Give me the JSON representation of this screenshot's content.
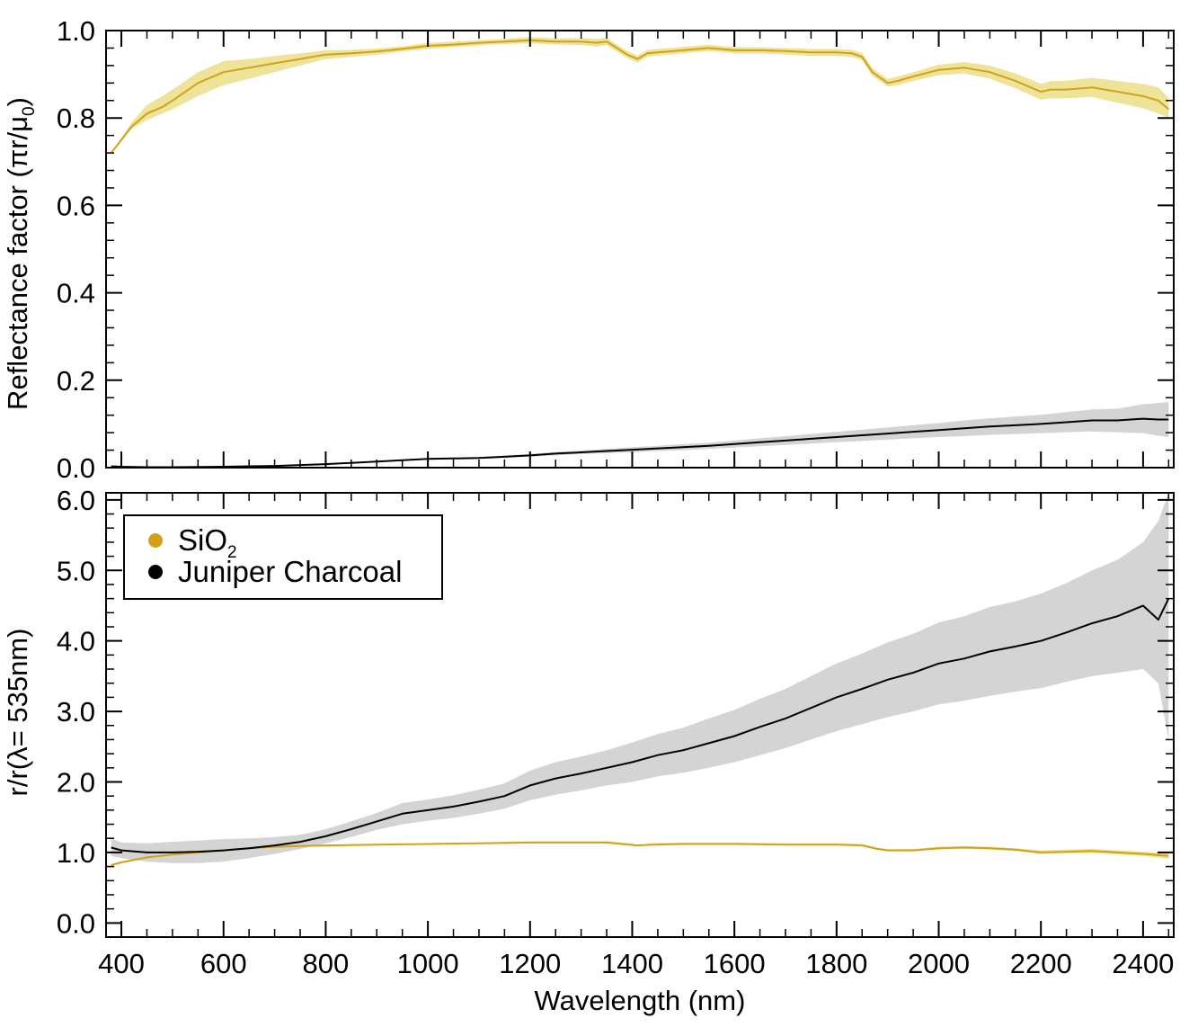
{
  "colors": {
    "sio2_line": "#D4A017",
    "sio2_band": "#EDE49A",
    "charcoal_line": "#000000",
    "charcoal_band": "#D4D4D4"
  },
  "chart_data": [
    {
      "type": "line",
      "panel": "top",
      "title": "",
      "xlabel": "",
      "ylabel": "Reflectance factor (πr/μ₀)",
      "ylabel_main": "Reflectance factor (πr/μ",
      "ylabel_sub": "0",
      "ylabel_tail": ")",
      "xlim": [
        370,
        2460
      ],
      "ylim": [
        0.0,
        1.0
      ],
      "yticks": [
        0.0,
        0.2,
        0.4,
        0.6,
        0.8,
        1.0
      ],
      "ytick_labels": [
        "0.0",
        "0.2",
        "0.4",
        "0.6",
        "0.8",
        "1.0"
      ],
      "grid": false,
      "series": [
        {
          "name": "SiO2",
          "color": "sio2",
          "x": [
            380,
            400,
            420,
            450,
            480,
            500,
            550,
            600,
            650,
            700,
            750,
            800,
            850,
            900,
            950,
            1000,
            1050,
            1100,
            1150,
            1200,
            1250,
            1300,
            1330,
            1350,
            1370,
            1390,
            1410,
            1430,
            1450,
            1500,
            1550,
            1600,
            1650,
            1700,
            1750,
            1800,
            1830,
            1850,
            1870,
            1900,
            1920,
            1950,
            2000,
            2050,
            2100,
            2150,
            2180,
            2200,
            2220,
            2250,
            2300,
            2350,
            2400,
            2430,
            2450
          ],
          "y": [
            0.72,
            0.75,
            0.78,
            0.81,
            0.825,
            0.84,
            0.88,
            0.905,
            0.915,
            0.925,
            0.935,
            0.945,
            0.948,
            0.952,
            0.958,
            0.965,
            0.968,
            0.972,
            0.975,
            0.978,
            0.975,
            0.975,
            0.972,
            0.975,
            0.96,
            0.945,
            0.935,
            0.948,
            0.95,
            0.955,
            0.96,
            0.955,
            0.955,
            0.953,
            0.95,
            0.95,
            0.948,
            0.94,
            0.905,
            0.88,
            0.885,
            0.895,
            0.91,
            0.915,
            0.905,
            0.885,
            0.87,
            0.86,
            0.865,
            0.865,
            0.87,
            0.86,
            0.85,
            0.84,
            0.82
          ],
          "lower": [
            0.72,
            0.75,
            0.775,
            0.795,
            0.81,
            0.82,
            0.85,
            0.875,
            0.89,
            0.905,
            0.92,
            0.935,
            0.94,
            0.945,
            0.952,
            0.958,
            0.962,
            0.966,
            0.969,
            0.971,
            0.968,
            0.967,
            0.963,
            0.967,
            0.952,
            0.937,
            0.927,
            0.94,
            0.943,
            0.948,
            0.953,
            0.948,
            0.948,
            0.945,
            0.942,
            0.942,
            0.94,
            0.932,
            0.896,
            0.872,
            0.875,
            0.885,
            0.898,
            0.902,
            0.89,
            0.868,
            0.852,
            0.842,
            0.845,
            0.845,
            0.848,
            0.835,
            0.822,
            0.81,
            0.8
          ],
          "upper": [
            0.72,
            0.755,
            0.79,
            0.83,
            0.85,
            0.865,
            0.905,
            0.93,
            0.935,
            0.942,
            0.948,
            0.955,
            0.956,
            0.959,
            0.964,
            0.972,
            0.975,
            0.978,
            0.981,
            0.985,
            0.982,
            0.983,
            0.981,
            0.984,
            0.968,
            0.953,
            0.943,
            0.956,
            0.958,
            0.963,
            0.968,
            0.962,
            0.962,
            0.96,
            0.958,
            0.958,
            0.956,
            0.948,
            0.914,
            0.889,
            0.895,
            0.905,
            0.922,
            0.928,
            0.92,
            0.902,
            0.888,
            0.878,
            0.885,
            0.885,
            0.892,
            0.885,
            0.878,
            0.87,
            0.845
          ]
        },
        {
          "name": "Juniper Charcoal",
          "color": "charcoal",
          "x": [
            380,
            400,
            450,
            500,
            550,
            600,
            650,
            700,
            750,
            800,
            850,
            900,
            950,
            1000,
            1050,
            1100,
            1150,
            1200,
            1250,
            1300,
            1350,
            1400,
            1450,
            1500,
            1550,
            1600,
            1650,
            1700,
            1750,
            1800,
            1850,
            1900,
            1950,
            2000,
            2050,
            2100,
            2150,
            2200,
            2250,
            2300,
            2350,
            2400,
            2430,
            2450
          ],
          "y": [
            0.003,
            0.002,
            0.001,
            0.001,
            0.0015,
            0.002,
            0.003,
            0.004,
            0.006,
            0.008,
            0.011,
            0.014,
            0.017,
            0.02,
            0.021,
            0.022,
            0.025,
            0.028,
            0.032,
            0.035,
            0.038,
            0.041,
            0.044,
            0.047,
            0.05,
            0.054,
            0.058,
            0.062,
            0.066,
            0.07,
            0.074,
            0.078,
            0.082,
            0.086,
            0.09,
            0.094,
            0.097,
            0.1,
            0.104,
            0.108,
            0.108,
            0.112,
            0.11,
            0.11
          ],
          "lower": [
            0.003,
            0.002,
            0.001,
            0.001,
            0.0015,
            0.002,
            0.003,
            0.004,
            0.006,
            0.008,
            0.011,
            0.013,
            0.016,
            0.018,
            0.019,
            0.02,
            0.022,
            0.025,
            0.028,
            0.031,
            0.033,
            0.035,
            0.038,
            0.04,
            0.043,
            0.046,
            0.049,
            0.052,
            0.055,
            0.058,
            0.061,
            0.064,
            0.067,
            0.07,
            0.072,
            0.075,
            0.077,
            0.079,
            0.081,
            0.083,
            0.081,
            0.079,
            0.073,
            0.07
          ],
          "upper": [
            0.003,
            0.002,
            0.001,
            0.001,
            0.0015,
            0.002,
            0.003,
            0.004,
            0.006,
            0.008,
            0.011,
            0.015,
            0.018,
            0.022,
            0.023,
            0.024,
            0.028,
            0.031,
            0.036,
            0.039,
            0.043,
            0.047,
            0.05,
            0.054,
            0.057,
            0.062,
            0.067,
            0.072,
            0.077,
            0.082,
            0.087,
            0.092,
            0.097,
            0.102,
            0.108,
            0.113,
            0.117,
            0.121,
            0.127,
            0.133,
            0.135,
            0.145,
            0.148,
            0.15
          ]
        }
      ]
    },
    {
      "type": "line",
      "panel": "bottom",
      "title": "",
      "xlabel": "Wavelength (nm)",
      "ylabel": "r/r(λ= 535nm)",
      "xlim": [
        370,
        2460
      ],
      "ylim": [
        -0.2,
        6.1
      ],
      "xticks": [
        400,
        600,
        800,
        1000,
        1200,
        1400,
        1600,
        1800,
        2000,
        2200,
        2400
      ],
      "xtick_labels": [
        "400",
        "600",
        "800",
        "1000",
        "1200",
        "1400",
        "1600",
        "1800",
        "2000",
        "2200",
        "2400"
      ],
      "yticks": [
        0.0,
        1.0,
        2.0,
        3.0,
        4.0,
        5.0,
        6.0
      ],
      "ytick_labels": [
        "0.0",
        "1.0",
        "2.0",
        "3.0",
        "4.0",
        "5.0",
        "6.0"
      ],
      "grid": false,
      "legend": {
        "placement": "top-left",
        "entries": [
          {
            "label": "SiO",
            "sub": "2",
            "color": "sio2"
          },
          {
            "label": "Juniper Charcoal",
            "sub": "",
            "color": "charcoal"
          }
        ]
      },
      "series": [
        {
          "name": "SiO2",
          "color": "sio2",
          "x": [
            380,
            400,
            450,
            500,
            550,
            600,
            650,
            700,
            750,
            800,
            900,
            1000,
            1100,
            1200,
            1300,
            1350,
            1380,
            1410,
            1440,
            1500,
            1600,
            1700,
            1800,
            1850,
            1880,
            1900,
            1950,
            2000,
            2050,
            2100,
            2150,
            2200,
            2250,
            2300,
            2350,
            2400,
            2450
          ],
          "y": [
            0.82,
            0.86,
            0.93,
            0.97,
            1.0,
            1.03,
            1.06,
            1.08,
            1.09,
            1.1,
            1.11,
            1.12,
            1.13,
            1.14,
            1.14,
            1.14,
            1.12,
            1.1,
            1.11,
            1.12,
            1.12,
            1.11,
            1.11,
            1.1,
            1.05,
            1.03,
            1.03,
            1.06,
            1.07,
            1.06,
            1.04,
            1.0,
            1.01,
            1.02,
            1.0,
            0.98,
            0.95
          ],
          "lower": [
            0.81,
            0.85,
            0.92,
            0.96,
            0.99,
            1.02,
            1.05,
            1.07,
            1.08,
            1.09,
            1.1,
            1.11,
            1.12,
            1.13,
            1.13,
            1.13,
            1.11,
            1.09,
            1.1,
            1.11,
            1.11,
            1.1,
            1.1,
            1.09,
            1.04,
            1.02,
            1.02,
            1.04,
            1.05,
            1.04,
            1.02,
            0.98,
            0.99,
            0.99,
            0.97,
            0.95,
            0.91
          ],
          "upper": [
            0.83,
            0.87,
            0.94,
            0.98,
            1.01,
            1.04,
            1.07,
            1.09,
            1.1,
            1.11,
            1.12,
            1.13,
            1.14,
            1.16,
            1.16,
            1.16,
            1.14,
            1.11,
            1.13,
            1.14,
            1.14,
            1.13,
            1.13,
            1.12,
            1.07,
            1.05,
            1.05,
            1.08,
            1.09,
            1.08,
            1.06,
            1.03,
            1.04,
            1.05,
            1.03,
            1.01,
            0.99
          ]
        },
        {
          "name": "Juniper Charcoal",
          "color": "charcoal",
          "x": [
            380,
            400,
            450,
            500,
            550,
            600,
            650,
            700,
            750,
            800,
            850,
            900,
            950,
            1000,
            1050,
            1100,
            1150,
            1200,
            1250,
            1300,
            1350,
            1400,
            1450,
            1500,
            1550,
            1600,
            1650,
            1700,
            1750,
            1800,
            1850,
            1900,
            1950,
            2000,
            2050,
            2100,
            2150,
            2200,
            2250,
            2300,
            2350,
            2400,
            2430,
            2450
          ],
          "y": [
            1.07,
            1.03,
            1.0,
            1.0,
            1.01,
            1.03,
            1.06,
            1.1,
            1.15,
            1.23,
            1.33,
            1.44,
            1.55,
            1.6,
            1.65,
            1.72,
            1.8,
            1.95,
            2.05,
            2.12,
            2.2,
            2.28,
            2.38,
            2.45,
            2.55,
            2.65,
            2.78,
            2.9,
            3.05,
            3.2,
            3.32,
            3.45,
            3.55,
            3.68,
            3.75,
            3.85,
            3.92,
            4.0,
            4.12,
            4.25,
            4.35,
            4.5,
            4.3,
            4.6
          ],
          "lower": [
            0.95,
            0.92,
            0.87,
            0.85,
            0.85,
            0.87,
            0.92,
            0.98,
            1.05,
            1.13,
            1.22,
            1.32,
            1.4,
            1.45,
            1.49,
            1.55,
            1.62,
            1.74,
            1.82,
            1.88,
            1.95,
            2.0,
            2.08,
            2.13,
            2.2,
            2.28,
            2.38,
            2.48,
            2.6,
            2.72,
            2.82,
            2.92,
            3.0,
            3.1,
            3.15,
            3.22,
            3.28,
            3.33,
            3.42,
            3.5,
            3.55,
            3.6,
            3.4,
            2.6
          ],
          "upper": [
            1.2,
            1.14,
            1.13,
            1.15,
            1.17,
            1.19,
            1.2,
            1.22,
            1.25,
            1.33,
            1.44,
            1.56,
            1.7,
            1.75,
            1.81,
            1.89,
            1.98,
            2.16,
            2.28,
            2.36,
            2.45,
            2.56,
            2.68,
            2.77,
            2.9,
            3.02,
            3.18,
            3.32,
            3.5,
            3.68,
            3.82,
            3.98,
            4.1,
            4.26,
            4.35,
            4.48,
            4.56,
            4.67,
            4.82,
            5.0,
            5.15,
            5.4,
            5.7,
            6.1
          ]
        }
      ]
    }
  ]
}
